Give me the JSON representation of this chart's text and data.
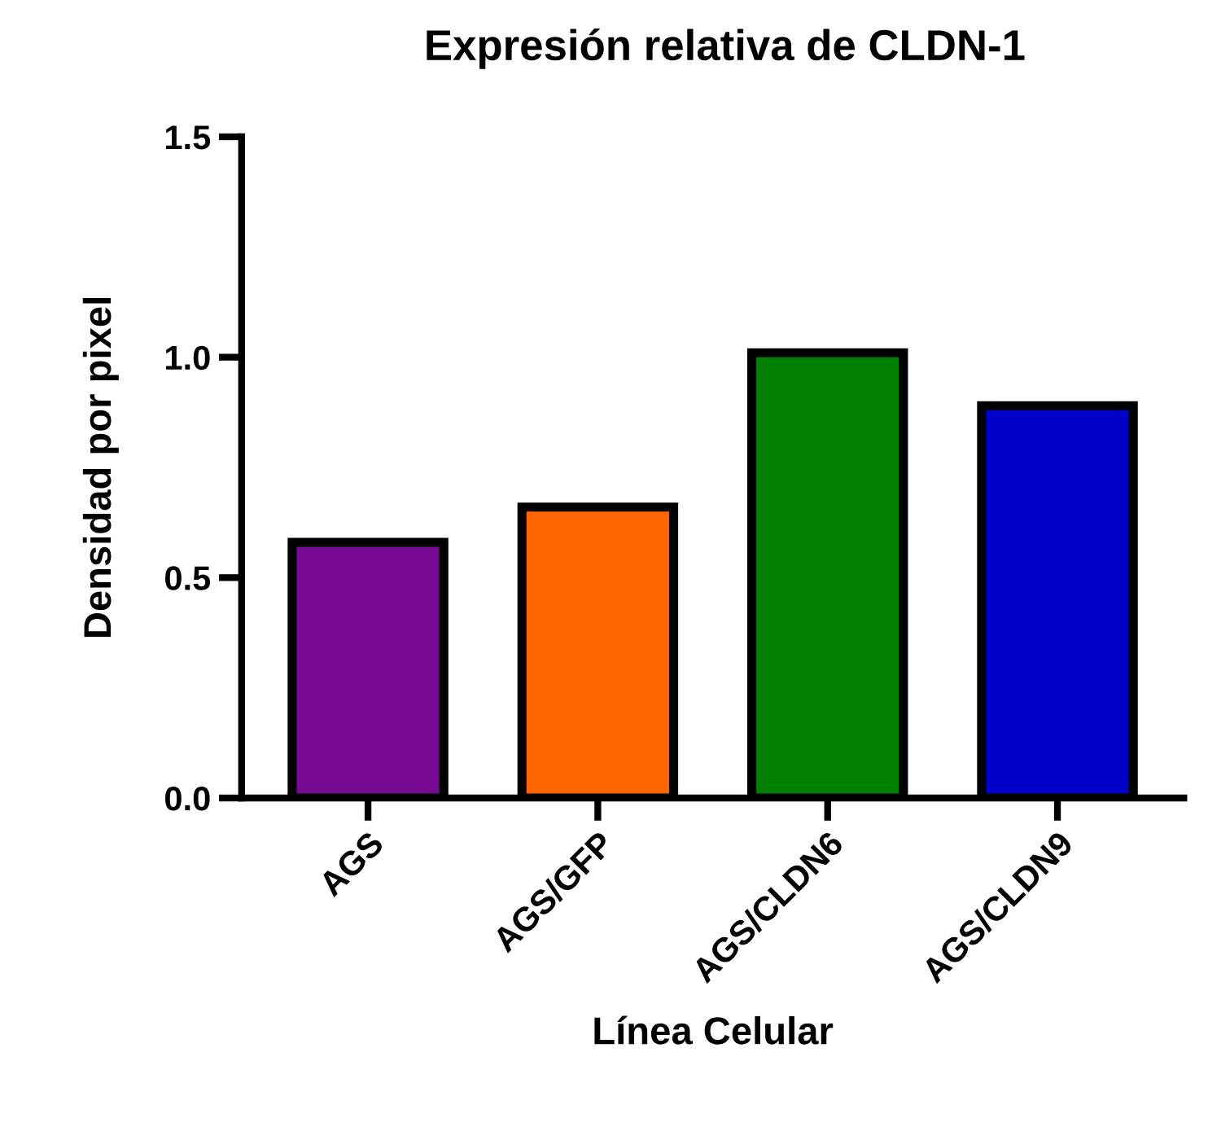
{
  "chart_data": {
    "type": "bar",
    "title": "Expresión relativa de CLDN-1",
    "xlabel": "Línea Celular",
    "ylabel": "Densidad por pixel",
    "categories": [
      "AGS",
      "AGS/GFP",
      "AGS/CLDN6",
      "AGS/CLDN9"
    ],
    "values": [
      0.58,
      0.66,
      1.01,
      0.89
    ],
    "colors": [
      "#770a92",
      "#ff6600",
      "#008000",
      "#0000c8"
    ],
    "ylim": [
      0,
      1.5
    ],
    "yticks": [
      {
        "value": 0,
        "label": "0.0"
      },
      {
        "value": 0.5,
        "label": "0.5"
      },
      {
        "value": 1.0,
        "label": "1.0"
      },
      {
        "value": 1.5,
        "label": "1.5"
      }
    ],
    "grid": false
  }
}
